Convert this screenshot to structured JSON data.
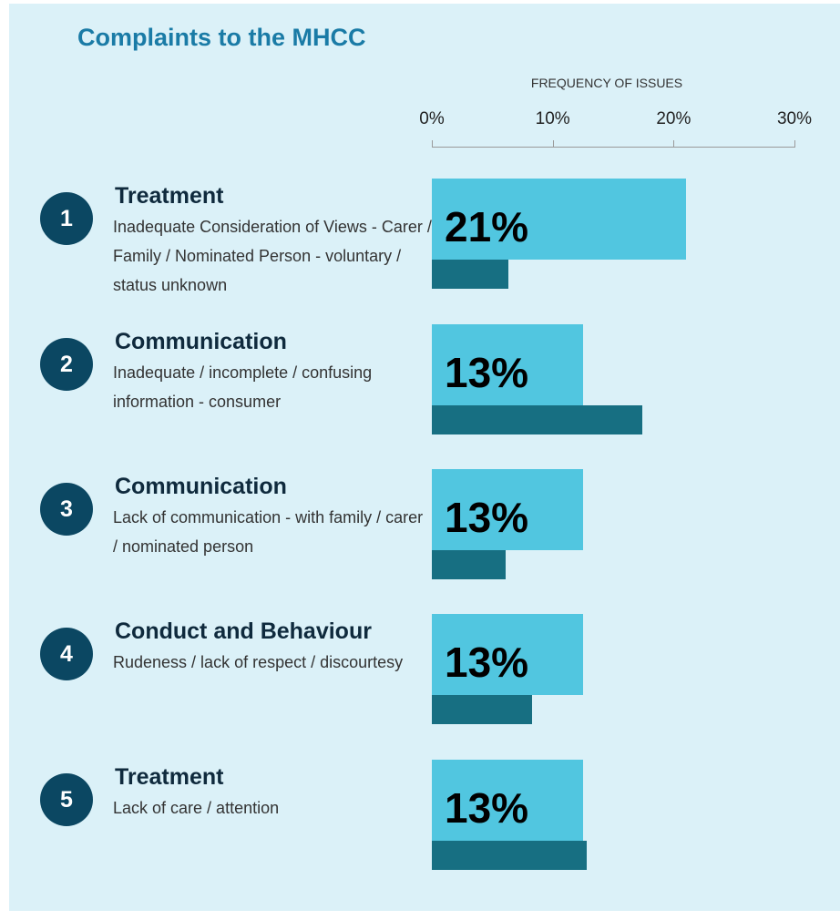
{
  "title": "Complaints to the MHCC",
  "colors": {
    "background": "#dbf1f8",
    "title": "#1a7ba6",
    "bar_light": "#51c6e0",
    "bar_dark": "#176f82",
    "rank_circle": "#0b4762"
  },
  "chart_data": {
    "type": "bar",
    "orientation": "horizontal",
    "axis_title": "FREQUENCY OF ISSUES",
    "xlim": [
      0,
      30
    ],
    "ticks": [
      "0%",
      "10%",
      "20%",
      "30%"
    ],
    "tick_values": [
      0,
      10,
      20,
      30
    ],
    "grid": false,
    "legend": "none",
    "categories": [
      {
        "rank": "1",
        "heading": "Treatment",
        "description": "Inadequate Consideration of Views - Carer / Family / Nominated Person - voluntary / status unknown",
        "value": 21,
        "label": "21%",
        "secondary_value": 6.3
      },
      {
        "rank": "2",
        "heading": "Communication",
        "description": "Inadequate / incomplete / confusing information - consumer",
        "value": 12.5,
        "label": "13%",
        "secondary_value": 17.4
      },
      {
        "rank": "3",
        "heading": "Communication",
        "description": "Lack of communication - with family / carer / nominated person",
        "value": 12.5,
        "label": "13%",
        "secondary_value": 6.1
      },
      {
        "rank": "4",
        "heading": "Conduct and Behaviour",
        "description": "Rudeness / lack of respect / discourtesy",
        "value": 12.5,
        "label": "13%",
        "secondary_value": 8.3
      },
      {
        "rank": "5",
        "heading": "Treatment",
        "description": "Lack of care / attention",
        "value": 12.5,
        "label": "13%",
        "secondary_value": 12.8
      }
    ]
  }
}
